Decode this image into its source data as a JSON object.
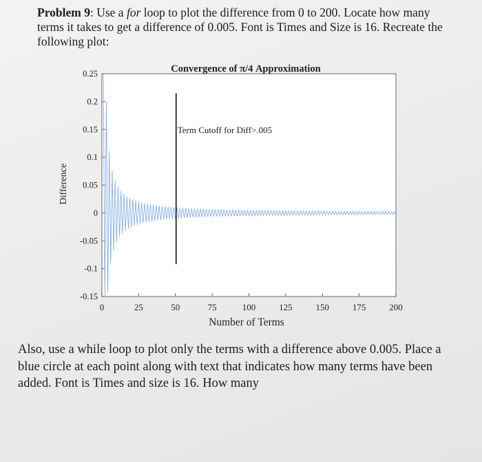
{
  "problem": {
    "number_label": "Problem 9",
    "text_before_emph": ": Use a ",
    "emph": "for",
    "text_after_emph": " loop to plot the difference from 0 to 200. Locate how many terms it takes to get a difference of 0.005. Font is Times and Size is 16. Recreate the following plot:"
  },
  "followup": {
    "text": "Also, use a while loop to plot only the terms with a difference above 0.005. Place a blue circle at each point along with text that indicates how many terms have been added. Font is Times and size is 16. How many"
  },
  "chart_data": {
    "type": "line",
    "title": "Convergence of π/4 Approximation",
    "xlabel": "Number of Terms",
    "ylabel": "Difference",
    "xlim": [
      0,
      200
    ],
    "ylim": [
      -0.15,
      0.25
    ],
    "xticks": [
      "0",
      "25",
      "50",
      "75",
      "100",
      "125",
      "150",
      "175",
      "200"
    ],
    "yticks": [
      "0.25",
      "0.2",
      "0.15",
      "0.1",
      "0.05",
      "0",
      "-0.05",
      "-0.1",
      "-0.15"
    ],
    "grid": false,
    "series_color": "#7aa7e6",
    "series_formula": "difference(n) = (-1)^(n+1) / (2n - 1), n = 1..200",
    "cutoff": {
      "x": 50,
      "label": "Term Cutoff for Diff>.005"
    }
  }
}
